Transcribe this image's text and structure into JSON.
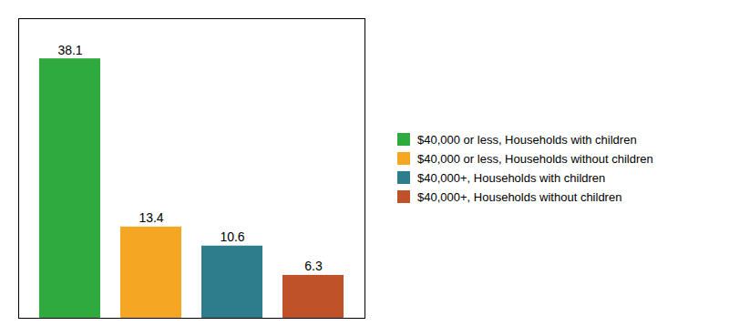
{
  "chart_data": {
    "type": "bar",
    "categories": [
      "$40,000 or less, Households with children",
      "$40,000 or less, Households without children",
      "$40,000+, Households with children",
      "$40,000+, Households without children"
    ],
    "values": [
      38.1,
      13.4,
      10.6,
      6.3
    ],
    "colors": [
      "#2eaa3f",
      "#f5a623",
      "#2e7d8c",
      "#c0522a"
    ],
    "ylim": [
      0,
      44
    ],
    "tick_labels": false,
    "data_labels": true,
    "grid": false,
    "legend": "right"
  }
}
